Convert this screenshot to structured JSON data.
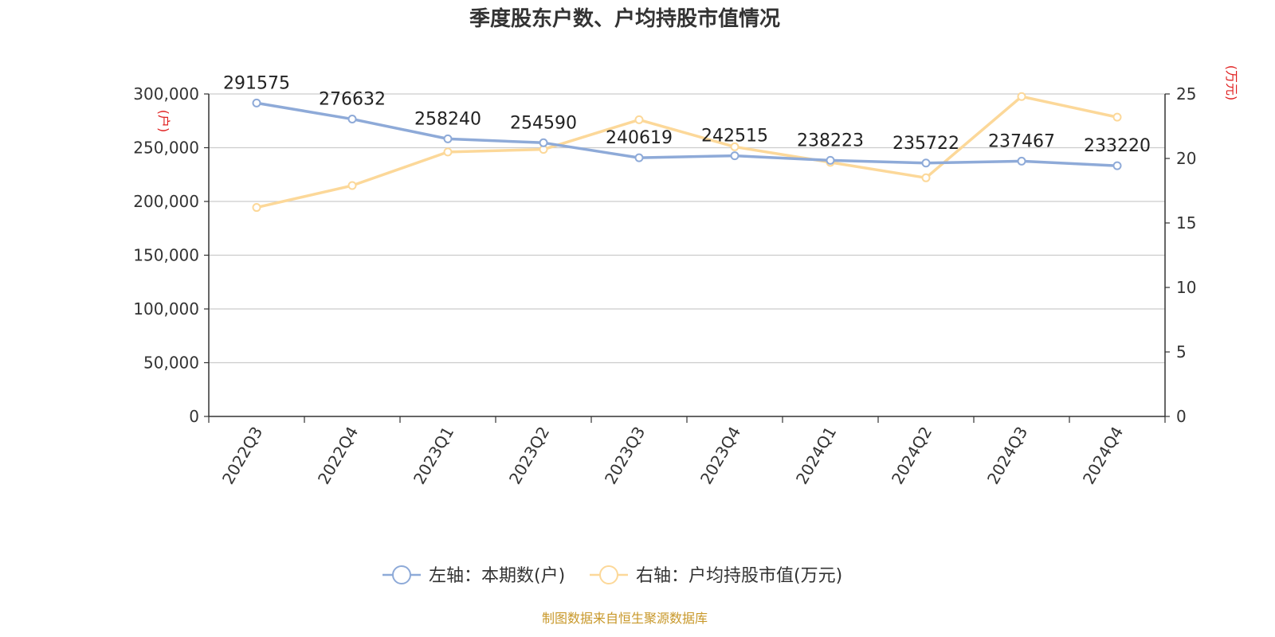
{
  "chart_data": {
    "type": "line",
    "title": "季度股东户数、户均持股市值情况",
    "categories": [
      "2022Q3",
      "2022Q4",
      "2023Q1",
      "2023Q2",
      "2023Q3",
      "2023Q4",
      "2024Q1",
      "2024Q2",
      "2024Q3",
      "2024Q4"
    ],
    "series": [
      {
        "name": "左轴：本期数(户)",
        "axis": "left",
        "color": "#8eaad8",
        "values": [
          291575,
          276632,
          258240,
          254590,
          240619,
          242515,
          238223,
          235722,
          237467,
          233220
        ],
        "labels": [
          "291575",
          "276632",
          "258240",
          "254590",
          "240619",
          "242515",
          "238223",
          "235722",
          "237467",
          "233220"
        ]
      },
      {
        "name": "右轴：户均持股市值(万元)",
        "axis": "right",
        "color": "#fcd899",
        "values": [
          16.2,
          17.9,
          20.5,
          20.7,
          23.0,
          20.9,
          19.7,
          18.5,
          24.8,
          23.2
        ]
      }
    ],
    "y_left": {
      "unit": "(户)",
      "range": [
        0,
        300000
      ],
      "ticks": [
        0,
        50000,
        100000,
        150000,
        200000,
        250000,
        300000
      ],
      "tick_labels": [
        "0",
        "50,000",
        "100,000",
        "150,000",
        "200,000",
        "250,000",
        "300,000"
      ]
    },
    "y_right": {
      "unit": "(万元)",
      "range": [
        0,
        25
      ],
      "ticks": [
        0,
        5,
        10,
        15,
        20,
        25
      ],
      "tick_labels": [
        "0",
        "5",
        "10",
        "15",
        "20",
        "25"
      ]
    },
    "grid": true,
    "legend_position": "bottom",
    "unit_color": "#e02020",
    "source": "制图数据来自恒生聚源数据库",
    "source_color": "#c8982a"
  }
}
